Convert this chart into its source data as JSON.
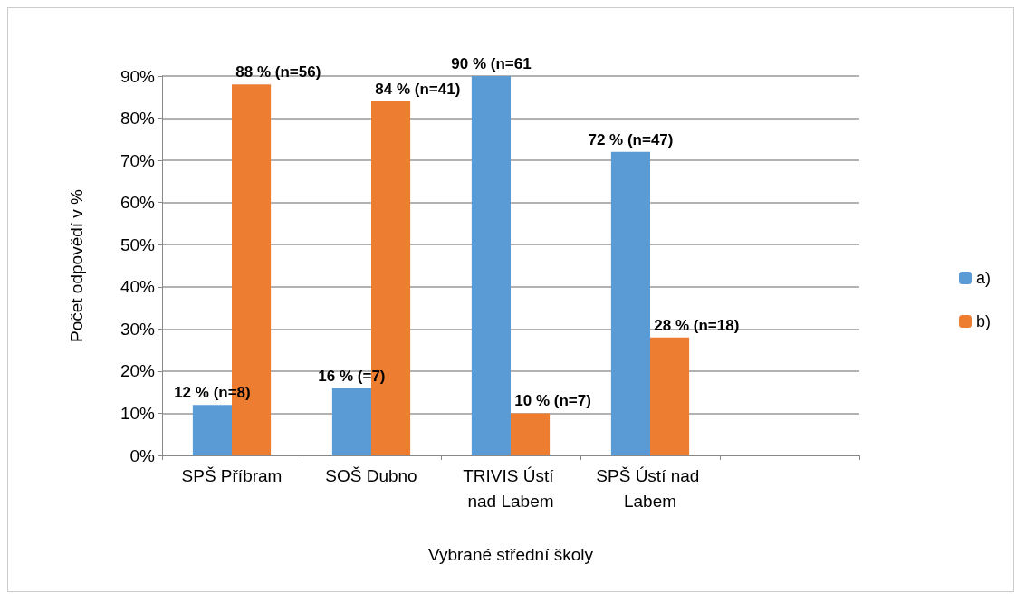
{
  "chart_data": {
    "type": "bar",
    "xlabel": "Vybrané střední školy",
    "ylabel": "Počet odpovědí v %",
    "categories": [
      "SPŠ Příbram",
      "SOŠ Dubno",
      "TRIVIS Ústí nad Labem",
      "SPŠ Ústí nad Labem",
      null
    ],
    "series": [
      {
        "name": "a)",
        "color": "#5b9bd5",
        "values": [
          12,
          16,
          90,
          72,
          null
        ],
        "value_labels": [
          "12 % (n=8)",
          "16 % (=7)",
          "90 % (n=61",
          "72 % (n=47)",
          null
        ]
      },
      {
        "name": "b)",
        "color": "#ed7d31",
        "values": [
          88,
          84,
          10,
          28,
          null
        ],
        "value_labels": [
          "88 % (n=56)",
          "84 % (n=41)",
          "10 % (n=7)",
          "28 % (n=18)",
          null
        ]
      }
    ],
    "ylim": [
      0,
      90
    ],
    "yticks": [
      {
        "value": 0,
        "label": "0%"
      },
      {
        "value": 10,
        "label": "10%"
      },
      {
        "value": 20,
        "label": "20%"
      },
      {
        "value": 30,
        "label": "30%"
      },
      {
        "value": 40,
        "label": "40%"
      },
      {
        "value": 50,
        "label": "50%"
      },
      {
        "value": 60,
        "label": "60%"
      },
      {
        "value": 70,
        "label": "70%"
      },
      {
        "value": 80,
        "label": "80%"
      },
      {
        "value": 90,
        "label": "90%"
      }
    ],
    "grid": "y",
    "legend": "right"
  }
}
